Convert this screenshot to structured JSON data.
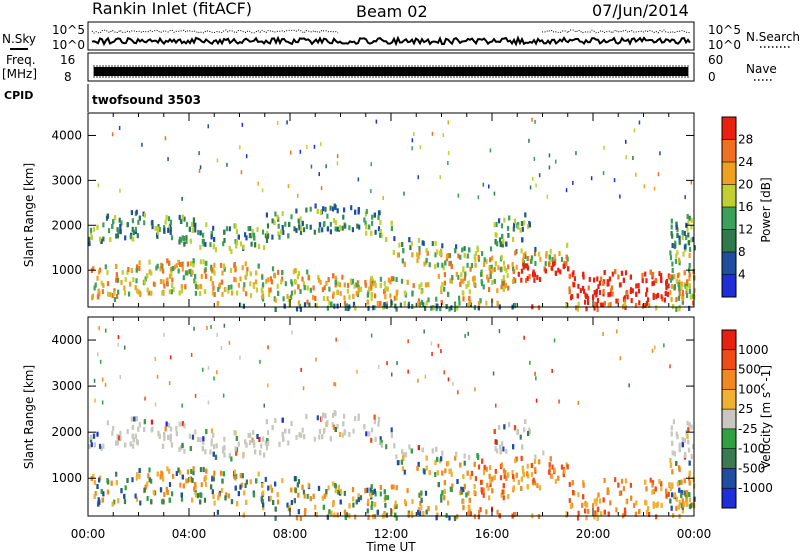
{
  "header": {
    "station": "Rankin Inlet (fitACF)",
    "beam": "Beam 02",
    "date": "07/Jun/2014"
  },
  "side_labels": {
    "nsky": "N.Sky",
    "nsearch": "N.Search",
    "freq_line1": "Freq.",
    "freq_line2": "[MHz]",
    "nave": "Nave",
    "cpid": "CPID",
    "cpid_value": "twofsound 3503"
  },
  "strip_ticks": {
    "noise_left": [
      "10^5",
      "10^0"
    ],
    "noise_right": [
      "10^5",
      "10^0"
    ],
    "freq_left": [
      "16",
      "8"
    ],
    "freq_right": [
      "60",
      "0"
    ]
  },
  "colors": {
    "power": [
      "#1f2fd8",
      "#1f4ea0",
      "#2f7a4a",
      "#3aa05a",
      "#c0d030",
      "#f0a020",
      "#f07020",
      "#e82010"
    ],
    "velocity": [
      "#e82010",
      "#f04a18",
      "#f08a20",
      "#f0b030",
      "#c8c8c0",
      "#30a040",
      "#3a7a50",
      "#1f4ea0",
      "#1f2fd8"
    ]
  },
  "chart_data": [
    {
      "type": "heatmap",
      "title": "Power",
      "ylabel": "Slant Range [km]",
      "xlabel": "",
      "colorbar_label": "Power [dB]",
      "colorbar_ticks": [
        4,
        8,
        12,
        16,
        20,
        24,
        28
      ],
      "ylim": [
        180,
        4500
      ],
      "yticks": [
        1000,
        2000,
        3000,
        4000
      ],
      "xlim": [
        0,
        24
      ],
      "xticks": [
        "00:00",
        "04:00",
        "08:00",
        "12:00",
        "16:00",
        "20:00",
        "00:00"
      ]
    },
    {
      "type": "heatmap",
      "title": "Velocity",
      "ylabel": "Slant Range [km]",
      "xlabel": "Time UT",
      "colorbar_label": "Velocity [m s^-1]",
      "colorbar_ticks": [
        1000,
        500,
        100,
        25,
        -25,
        -100,
        -500,
        -1000
      ],
      "ylim": [
        180,
        4500
      ],
      "yticks": [
        1000,
        2000,
        3000,
        4000
      ],
      "xlim": [
        0,
        24
      ],
      "xticks": [
        "00:00",
        "04:00",
        "08:00",
        "12:00",
        "16:00",
        "20:00",
        "00:00"
      ]
    }
  ]
}
